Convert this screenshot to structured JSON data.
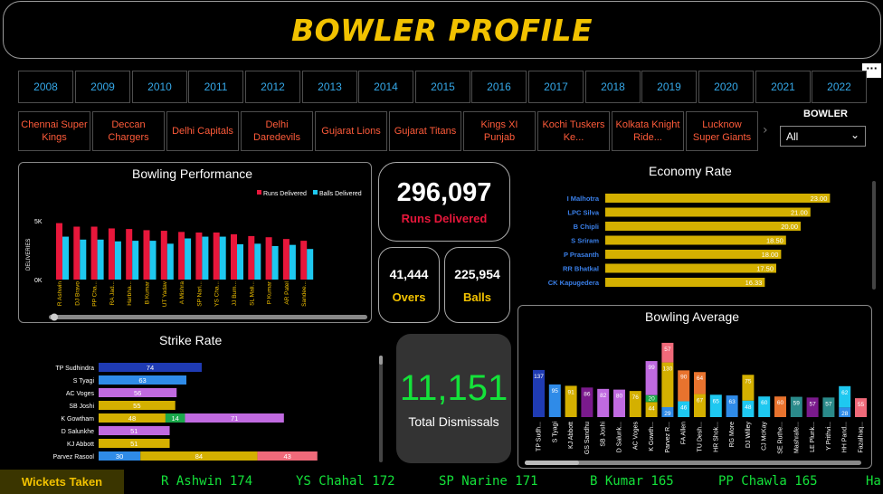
{
  "header": {
    "title": "BOWLER PROFILE",
    "more_icon": "ellipsis-icon"
  },
  "years": [
    "2008",
    "2009",
    "2010",
    "2011",
    "2012",
    "2013",
    "2014",
    "2015",
    "2016",
    "2017",
    "2018",
    "2019",
    "2020",
    "2021",
    "2022"
  ],
  "teams": [
    "Chennai Super Kings",
    "Deccan Chargers",
    "Delhi Capitals",
    "Delhi Daredevils",
    "Gujarat Lions",
    "Gujarat Titans",
    "Kings XI Punjab",
    "Kochi Tuskers Ke...",
    "Kolkata Knight Ride...",
    "Lucknow Super Giants"
  ],
  "filter": {
    "label": "BOWLER",
    "value": "All"
  },
  "kpis": {
    "runs": {
      "value": "296,097",
      "label": "Runs Delivered"
    },
    "overs": {
      "value": "41,444",
      "label": "Overs"
    },
    "balls": {
      "value": "225,954",
      "label": "Balls"
    },
    "dismissals": {
      "value": "11,151",
      "label": "Total Dismissals"
    }
  },
  "colors": {
    "accent": "#f2c200",
    "runs": "#e8173b",
    "balls": "#1ec8f0",
    "ticker": "#14e23a"
  },
  "chart_data": [
    {
      "type": "bar",
      "title": "Bowling Performance",
      "ylabel": "DELIVERIES",
      "ytick_labels": [
        "5K",
        "0K"
      ],
      "ylim": [
        0,
        6000
      ],
      "legend": "top-right",
      "categories": [
        "R Ashwin",
        "DJ Bravo",
        "PP Cha...",
        "RA Jad...",
        "Harbha...",
        "B Kumar",
        "UT Yadav",
        "A Mishra",
        "SP Nari...",
        "YS Cha...",
        "JJ Bum...",
        "SL Mali...",
        "P Kumar",
        "AR Patel",
        "Sandee..."
      ],
      "series": [
        {
          "name": "Runs Delivered",
          "values": [
            4800,
            4500,
            4500,
            4350,
            4300,
            4200,
            4150,
            4050,
            4000,
            4000,
            3850,
            3700,
            3600,
            3450,
            3300
          ]
        },
        {
          "name": "Balls Delivered",
          "values": [
            3650,
            3400,
            3400,
            3250,
            3300,
            3300,
            3050,
            3500,
            3650,
            3650,
            3000,
            3050,
            2850,
            2950,
            2600
          ]
        }
      ]
    },
    {
      "type": "bar",
      "title": "Economy Rate",
      "orientation": "horizontal",
      "xlim": [
        0,
        25
      ],
      "categories": [
        "I Malhotra",
        "LPC Silva",
        "B Chipli",
        "S Sriram",
        "P Prasanth",
        "RR Bhatkal",
        "CK Kapugedera"
      ],
      "values": [
        23.0,
        21.0,
        20.0,
        18.5,
        18.0,
        17.5,
        16.33
      ],
      "value_labels": [
        "23.00",
        "21.00",
        "20.00",
        "18.50",
        "18.00",
        "17.50",
        "16.33"
      ]
    },
    {
      "type": "bar",
      "title": "Strike Rate",
      "orientation": "horizontal",
      "stacked": true,
      "categories": [
        "TP Sudhindra",
        "S Tyagi",
        "AC Voges",
        "SB Joshi",
        "K Gowtham",
        "D Salunkhe",
        "KJ Abbott",
        "Parvez Rasool"
      ],
      "rows": [
        [
          {
            "v": 74,
            "c": "#1f3bb3"
          }
        ],
        [
          {
            "v": 63,
            "c": "#2f8be8"
          }
        ],
        [
          {
            "v": 56,
            "c": "#c06ae0"
          }
        ],
        [
          {
            "v": 55,
            "c": "#d4b000"
          }
        ],
        [
          {
            "v": 48,
            "c": "#d4b000"
          },
          {
            "v": 14,
            "c": "#1aa84a"
          },
          {
            "v": 71,
            "c": "#c06ae0"
          }
        ],
        [
          {
            "v": 51,
            "c": "#c06ae0"
          }
        ],
        [
          {
            "v": 51,
            "c": "#d4b000"
          }
        ],
        [
          {
            "v": 30,
            "c": "#2f8be8"
          },
          {
            "v": 84,
            "c": "#d4b000"
          },
          {
            "v": 43,
            "c": "#f06a7a"
          }
        ]
      ]
    },
    {
      "type": "bar",
      "title": "Bowling Average",
      "stacked": true,
      "categories": [
        "TP Sudh...",
        "S Tyagi",
        "KJ Abbott",
        "GS Sandhu",
        "SB Joshi",
        "D Salunk...",
        "AC Voges",
        "K Gowth...",
        "Parvez R...",
        "FA Allen",
        "TU Desh...",
        "HR Shok...",
        "RG More",
        "DJ Willey",
        "CJ McKay",
        "SE Ruthe...",
        "Mashrafe...",
        "LE Plunk...",
        "Y Prithvi...",
        "HH Pand...",
        "Fazalhaq..."
      ],
      "stacks": [
        [
          {
            "v": 137,
            "c": "#1f3bb3"
          }
        ],
        [
          {
            "v": 95,
            "c": "#2f8be8"
          }
        ],
        [
          {
            "v": 91,
            "c": "#d4b000"
          }
        ],
        [
          {
            "v": 86,
            "c": "#7a1a8c"
          }
        ],
        [
          {
            "v": 82,
            "c": "#c06ae0"
          }
        ],
        [
          {
            "v": 80,
            "c": "#c06ae0"
          }
        ],
        [
          {
            "v": 76,
            "c": "#d4b000"
          }
        ],
        [
          {
            "v": 44,
            "c": "#d4b000"
          },
          {
            "v": 20,
            "c": "#1aa84a"
          },
          {
            "v": 99,
            "c": "#c06ae0"
          }
        ],
        [
          {
            "v": 29,
            "c": "#2f8be8"
          },
          {
            "v": 130,
            "c": "#d4b000"
          },
          {
            "v": 57,
            "c": "#f06a7a"
          }
        ],
        [
          {
            "v": 46,
            "c": "#1ec8f0"
          },
          {
            "v": 90,
            "c": "#e8732e"
          }
        ],
        [
          {
            "v": 67,
            "c": "#d4b000"
          },
          {
            "v": 64,
            "c": "#e8732e"
          }
        ],
        [
          {
            "v": 65,
            "c": "#1ec8f0"
          }
        ],
        [
          {
            "v": 63,
            "c": "#2f8be8"
          }
        ],
        [
          {
            "v": 48,
            "c": "#1ec8f0"
          },
          {
            "v": 75,
            "c": "#d4b000"
          }
        ],
        [
          {
            "v": 60,
            "c": "#1ec8f0"
          }
        ],
        [
          {
            "v": 60,
            "c": "#e8732e"
          }
        ],
        [
          {
            "v": 59,
            "c": "#2a8a8a"
          }
        ],
        [
          {
            "v": 57,
            "c": "#7a1a8c"
          }
        ],
        [
          {
            "v": 57,
            "c": "#2a8a8a"
          }
        ],
        [
          {
            "v": 28,
            "c": "#2f8be8"
          },
          {
            "v": 62,
            "c": "#1ec8f0"
          }
        ],
        [
          {
            "v": 55,
            "c": "#f06a7a"
          }
        ]
      ]
    }
  ],
  "ticker": {
    "label": "Wickets Taken",
    "items": [
      "R Ashwin 174",
      "YS Chahal 172",
      "SP Narine 171",
      "B Kumar 165",
      "PP Chawla 165",
      "Ha"
    ]
  }
}
